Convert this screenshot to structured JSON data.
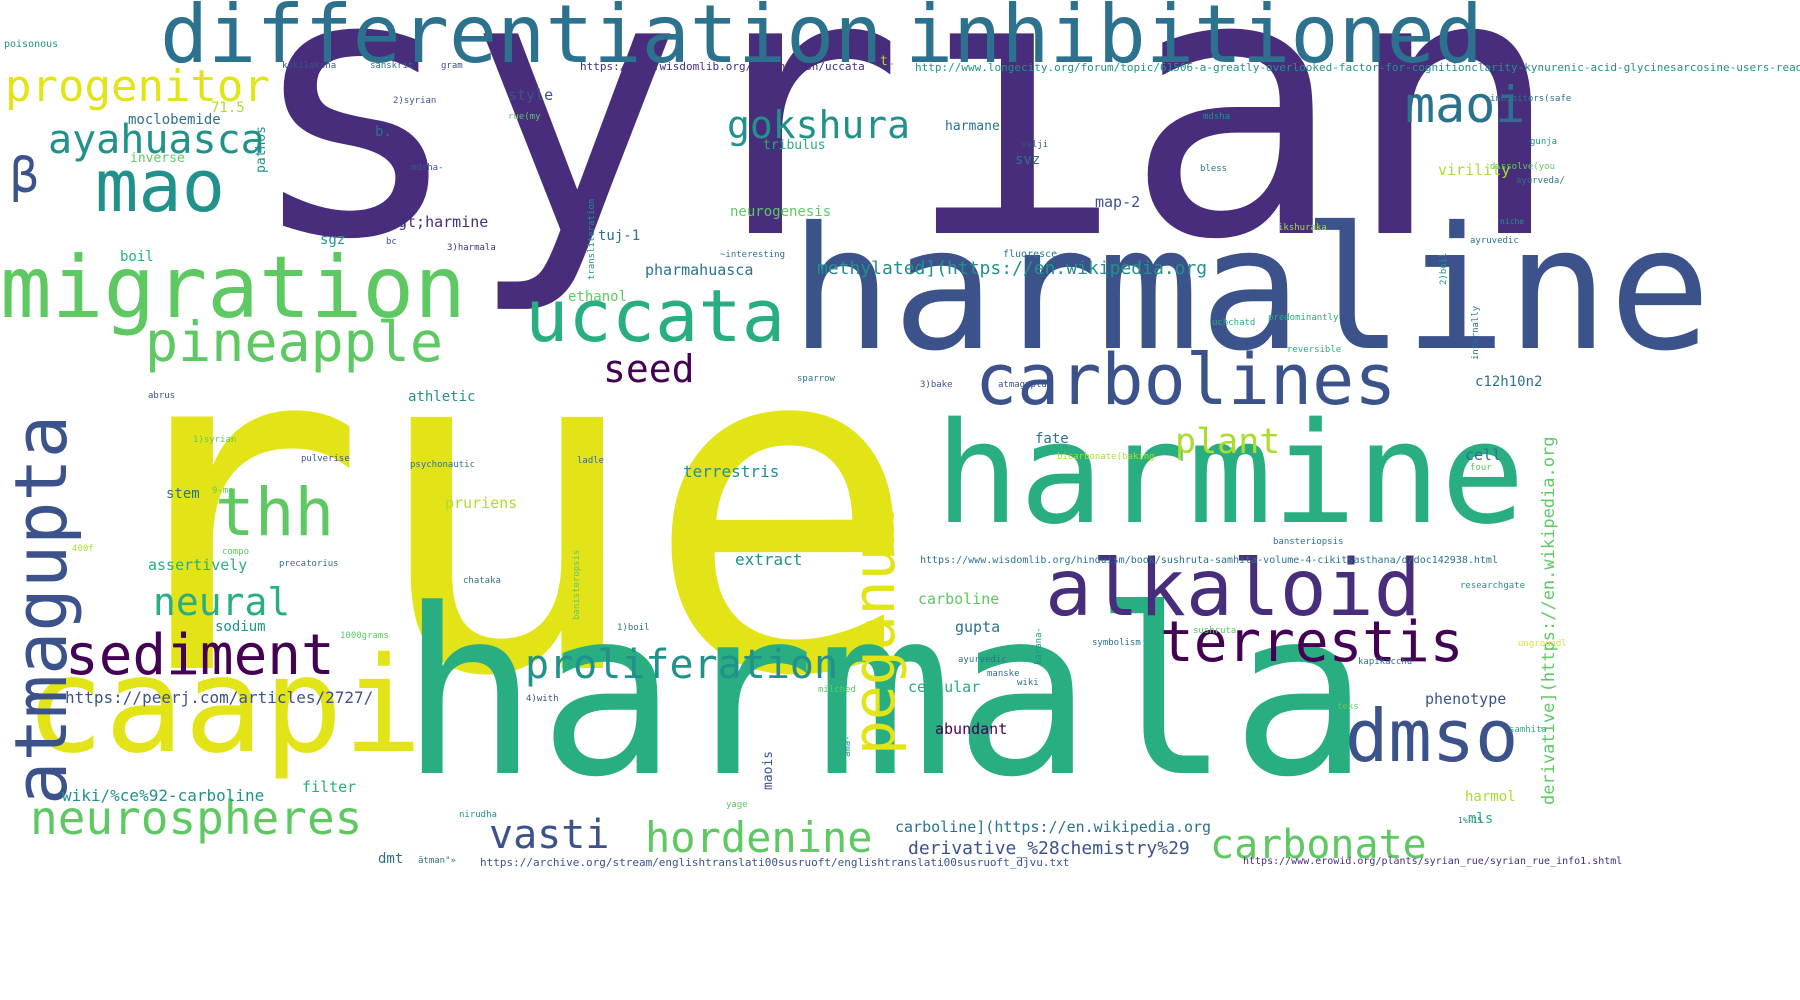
{
  "palette": {
    "c0": "#440154",
    "c1": "#472d7b",
    "c2": "#3b528b",
    "c3": "#2c728e",
    "c4": "#21918c",
    "c5": "#28ae80",
    "c6": "#5ec962",
    "c7": "#addc30",
    "c8": "#e2e418"
  },
  "words": [
    {
      "text": "syrian",
      "color": "c1"
    },
    {
      "text": "rue",
      "color": "c8"
    },
    {
      "text": "harmala",
      "color": "c5"
    },
    {
      "text": "harmaline",
      "color": "c2"
    },
    {
      "text": "harmine",
      "color": "c5"
    },
    {
      "text": "caapi",
      "color": "c8"
    },
    {
      "text": "migration",
      "color": "c6"
    },
    {
      "text": "differentiation",
      "color": "c3"
    },
    {
      "text": "inhibitioned",
      "color": "c3"
    },
    {
      "text": "carbolines",
      "color": "c2"
    },
    {
      "text": "alkaloid",
      "color": "c1"
    },
    {
      "text": "atmagupta",
      "color": "c2"
    },
    {
      "text": "mao",
      "color": "c4"
    },
    {
      "text": "uccata",
      "color": "c5"
    },
    {
      "text": "dmso",
      "color": "c2"
    },
    {
      "text": "sediment",
      "color": "c0"
    },
    {
      "text": "terrestis",
      "color": "c0"
    },
    {
      "text": "peganum",
      "color": "c8"
    },
    {
      "text": "pineapple",
      "color": "c6"
    },
    {
      "text": "thh",
      "color": "c6"
    },
    {
      "text": "neurospheres",
      "color": "c6"
    },
    {
      "text": "maoi",
      "color": "c3"
    },
    {
      "text": "progenitor",
      "color": "c8"
    },
    {
      "text": "β",
      "color": "c2"
    },
    {
      "text": "proliferation",
      "color": "c4"
    },
    {
      "text": "hordenine",
      "color": "c6"
    },
    {
      "text": "carbonate",
      "color": "c6"
    },
    {
      "text": "ayahuasca",
      "color": "c4"
    },
    {
      "text": "gokshura",
      "color": "c4"
    },
    {
      "text": "vasti",
      "color": "c2"
    },
    {
      "text": "neural",
      "color": "c5"
    },
    {
      "text": "plant",
      "color": "c7"
    },
    {
      "text": "seed",
      "color": "c0"
    },
    {
      "text": "methylated](https://en.wikipedia.org",
      "color": "c4"
    },
    {
      "text": "derivative](https://en.wikipedia.org",
      "color": "c6"
    },
    {
      "text": "https://peerj.com/articles/2727/",
      "color": "c2"
    },
    {
      "text": "wiki/%ce%92-carboline",
      "color": "c4"
    },
    {
      "text": "derivative_%28chemistry%29",
      "color": "c2"
    },
    {
      "text": "carboline](https://en.wikipedia.org",
      "color": "c3"
    },
    {
      "text": "terrestris",
      "color": "c4"
    },
    {
      "text": "extract",
      "color": "c4"
    },
    {
      "text": "pharmahuasca",
      "color": "c3"
    },
    {
      "text": "neurogenesis",
      "color": "c6"
    },
    {
      "text": "phenotype",
      "color": "c2"
    },
    {
      "text": "cellular",
      "color": "c5"
    },
    {
      "text": "abundant",
      "color": "c0"
    },
    {
      "text": "gupta",
      "color": "c3"
    },
    {
      "text": "carboline",
      "color": "c6"
    },
    {
      "text": "filter",
      "color": "c5"
    },
    {
      "text": "assertively",
      "color": "c5"
    },
    {
      "text": "sodium",
      "color": "c4"
    },
    {
      "text": "stem",
      "color": "c3"
    },
    {
      "text": "pruriens",
      "color": "c7"
    },
    {
      "text": "athletic",
      "color": "c4"
    },
    {
      "text": "fate",
      "color": "c3"
    },
    {
      "text": "ethanol",
      "color": "c6"
    },
    {
      "text": "tuj-1",
      "color": "c3"
    },
    {
      "text": "gt;harmine",
      "color": "c1"
    },
    {
      "text": "map-2",
      "color": "c2"
    },
    {
      "text": "svz",
      "color": "c3"
    },
    {
      "text": "sgz",
      "color": "c4"
    },
    {
      "text": "style",
      "color": "c2"
    },
    {
      "text": "moclobemide",
      "color": "c3"
    },
    {
      "text": "tribulus",
      "color": "c5"
    },
    {
      "text": "harmane",
      "color": "c3"
    },
    {
      "text": "virility",
      "color": "c7"
    },
    {
      "text": "c12h10n2",
      "color": "c3"
    },
    {
      "text": "cell",
      "color": "c3"
    },
    {
      "text": "harmol",
      "color": "c7"
    },
    {
      "text": "mls",
      "color": "c5"
    },
    {
      "text": "dmt",
      "color": "c3"
    },
    {
      "text": "boil",
      "color": "c5"
    },
    {
      "text": "71.5",
      "color": "c7"
    },
    {
      "text": "b.",
      "color": "c3"
    },
    {
      "text": "t.",
      "color": "c7"
    },
    {
      "text": "pathos",
      "color": "c4"
    },
    {
      "text": "inverse",
      "color": "c6"
    },
    {
      "text": "maois",
      "color": "c2"
    },
    {
      "text": "https://www.wisdomlib.org/definition/uccata",
      "color": "c1"
    },
    {
      "text": "http://www.longecity.org/forum/topic/61506-a-greatly-overlooked-factor-for-cognitionclarity-kynurenic-acid-glycinesarcosine-users-read/",
      "color": "c4"
    },
    {
      "text": "https://www.wisdomlib.org/hinduism/book/sushruta-samhita-volume-4-cikitsasthana/d/doc142938.html",
      "color": "c3"
    },
    {
      "text": "https://archive.org/stream/englishtranslati00susruoft/englishtranslati00susruoft_djvu.txt",
      "color": "c2"
    },
    {
      "text": "https://www.erowid.org/plants/syrian_rue/syrian_rue_info1.shtml",
      "color": "c1"
    },
    {
      "text": "poisonous",
      "color": "c4"
    },
    {
      "text": "kokilaksha",
      "color": "c2"
    },
    {
      "text": "sanskrit",
      "color": "c3"
    },
    {
      "text": "gram",
      "color": "c2"
    },
    {
      "text": "2)syrian",
      "color": "c2"
    },
    {
      "text": "rue(my",
      "color": "c6"
    },
    {
      "text": "mdsha-",
      "color": "c2"
    },
    {
      "text": "3)harmala",
      "color": "c1"
    },
    {
      "text": "bc",
      "color": "c2"
    },
    {
      "text": "transliteration",
      "color": "c4"
    },
    {
      "text": "~interesting",
      "color": "c3"
    },
    {
      "text": "fluoresce",
      "color": "c3"
    },
    {
      "text": "valji",
      "color": "c2"
    },
    {
      "text": "mdsha",
      "color": "c4"
    },
    {
      "text": "bless",
      "color": "c3"
    },
    {
      "text": "inhibitors(safe",
      "color": "c3"
    },
    {
      "text": "gunja",
      "color": "c4"
    },
    {
      "text": "ayurveda/",
      "color": "c3"
    },
    {
      "text": "dissolve(you",
      "color": "c6"
    },
    {
      "text": "niche",
      "color": "c4"
    },
    {
      "text": "ayruvedic",
      "color": "c3"
    },
    {
      "text": "ikshuraka",
      "color": "c7"
    },
    {
      "text": "uchchatd",
      "color": "c5"
    },
    {
      "text": "predominantly",
      "color": "c5"
    },
    {
      "text": "reversible",
      "color": "c5"
    },
    {
      "text": "internally",
      "color": "c3"
    },
    {
      "text": "2)boil",
      "color": "c4"
    },
    {
      "text": "atmaguptd",
      "color": "c2"
    },
    {
      "text": "sparrow",
      "color": "c3"
    },
    {
      "text": "abrus",
      "color": "c2"
    },
    {
      "text": "3)bake",
      "color": "c2"
    },
    {
      "text": "1)syrian",
      "color": "c6"
    },
    {
      "text": "pulverise",
      "color": "c2"
    },
    {
      "text": "psychonautic",
      "color": "c3"
    },
    {
      "text": "ladle",
      "color": "c3"
    },
    {
      "text": "bicarbonate(baking",
      "color": "c7"
    },
    {
      "text": "four",
      "color": "c6"
    },
    {
      "text": "9-me",
      "color": "c6"
    },
    {
      "text": "400f",
      "color": "c7"
    },
    {
      "text": "precatorius",
      "color": "c3"
    },
    {
      "text": "compo",
      "color": "c6"
    },
    {
      "text": "chataka",
      "color": "c3"
    },
    {
      "text": "banisteropsis",
      "color": "c6"
    },
    {
      "text": "bansteriopsis",
      "color": "c3"
    },
    {
      "text": "ayurvedic",
      "color": "c3"
    },
    {
      "text": "researchgate",
      "color": "c4"
    },
    {
      "text": "1000grams",
      "color": "c6"
    },
    {
      "text": "1)boil",
      "color": "c3"
    },
    {
      "text": "symbolism",
      "color": "c3"
    },
    {
      "text": "sushruta",
      "color": "c6"
    },
    {
      "text": "karana-",
      "color": "c4"
    },
    {
      "text": "manske",
      "color": "c3"
    },
    {
      "text": "wiki",
      "color": "c3"
    },
    {
      "text": "ungroundl",
      "color": "c8"
    },
    {
      "text": "4)with",
      "color": "c2"
    },
    {
      "text": "milched",
      "color": "c6"
    },
    {
      "text": "kapikacchu",
      "color": "c3"
    },
    {
      "text": "teks",
      "color": "c6"
    },
    {
      "text": "samhita",
      "color": "c5"
    },
    {
      "text": "ama-",
      "color": "c4"
    },
    {
      "text": "yage",
      "color": "c6"
    },
    {
      "text": "nirudha",
      "color": "c4"
    },
    {
      "text": "1%-15",
      "color": "c3"
    },
    {
      "text": "ātman\"»",
      "color": "c3"
    }
  ]
}
